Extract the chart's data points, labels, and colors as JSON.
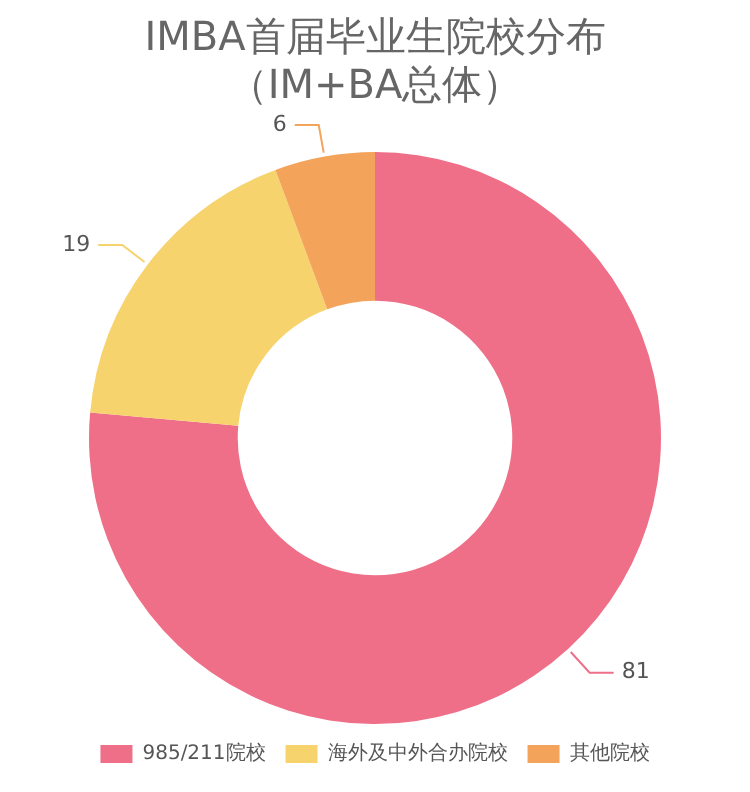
{
  "chart_data": {
    "type": "donut",
    "title": "IMBA首届毕业生院校分布",
    "subtitle": "（IM+BA总体）",
    "categories": [
      "985/211院校",
      "海外及中外合办院校",
      "其他院校"
    ],
    "values": [
      81,
      19,
      6
    ],
    "colors": [
      "#ee6f87",
      "#f7d36e",
      "#f3a45a"
    ],
    "data_labels": true,
    "legend": "bottom"
  }
}
